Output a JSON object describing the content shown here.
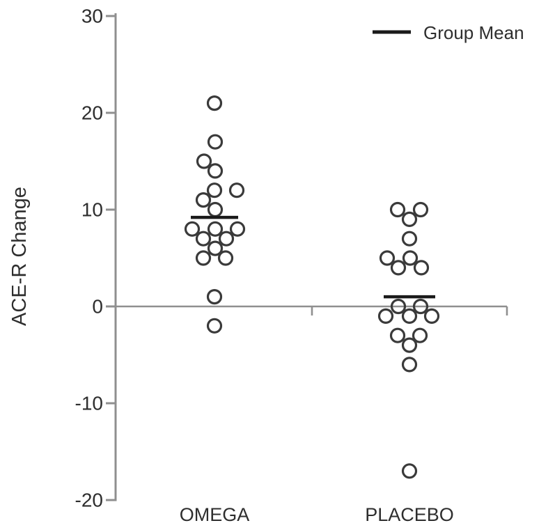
{
  "chart_data": {
    "type": "scatter",
    "subtype": "categorical-dot-plot",
    "title": "",
    "xlabel": "",
    "ylabel": "ACE-R Change",
    "ylim": [
      -20,
      30
    ],
    "yticks": [
      "30",
      "20",
      "10",
      "0",
      "-10",
      "-20"
    ],
    "ytick_values": [
      30,
      20,
      10,
      0,
      -10,
      -20
    ],
    "categories": [
      "OMEGA",
      "PLACEBO"
    ],
    "grid": false,
    "legend": {
      "label": "Group Mean",
      "position": "top-right",
      "marker": "horizontal-line"
    },
    "marker": {
      "shape": "open-circle",
      "radius_px": 9.5,
      "stroke_px": 3.2
    },
    "series": [
      {
        "name": "OMEGA",
        "n": 18,
        "values": [
          21,
          17,
          15,
          14,
          12,
          12,
          11,
          10,
          8,
          8,
          8,
          7,
          7,
          6,
          5,
          5,
          1,
          -2
        ],
        "mean": 9.2,
        "points": [
          [
            21,
            0
          ],
          [
            17,
            1
          ],
          [
            15,
            -15
          ],
          [
            14,
            1
          ],
          [
            12,
            0
          ],
          [
            12,
            32
          ],
          [
            11,
            -16
          ],
          [
            10,
            1
          ],
          [
            8,
            -32
          ],
          [
            8,
            1
          ],
          [
            8,
            33
          ],
          [
            7,
            -16
          ],
          [
            7,
            17
          ],
          [
            6,
            1
          ],
          [
            5,
            -16
          ],
          [
            5,
            16
          ],
          [
            1,
            0
          ],
          [
            -2,
            0
          ]
        ]
      },
      {
        "name": "PLACEBO",
        "n": 18,
        "values": [
          10,
          10,
          9,
          7,
          5,
          5,
          4,
          4,
          0,
          0,
          -1,
          -1,
          -1,
          -3,
          -3,
          -4,
          -6,
          -17
        ],
        "mean": 1.0,
        "points": [
          [
            10,
            -17
          ],
          [
            10,
            16
          ],
          [
            9,
            0
          ],
          [
            7,
            0
          ],
          [
            5,
            -32
          ],
          [
            5,
            1
          ],
          [
            4,
            -16
          ],
          [
            4,
            17
          ],
          [
            0,
            -16
          ],
          [
            0,
            16
          ],
          [
            -1,
            -34
          ],
          [
            -1,
            0
          ],
          [
            -1,
            32
          ],
          [
            -3,
            -17
          ],
          [
            -3,
            15
          ],
          [
            -4,
            0
          ],
          [
            -6,
            0
          ],
          [
            -17,
            0
          ]
        ]
      }
    ],
    "colors": {
      "marker_stroke": "#3a3a3a",
      "axis": "#8f8f8f",
      "mean_line": "#1a1a1a",
      "text": "#2e2e2e",
      "background": "#ffffff"
    }
  }
}
